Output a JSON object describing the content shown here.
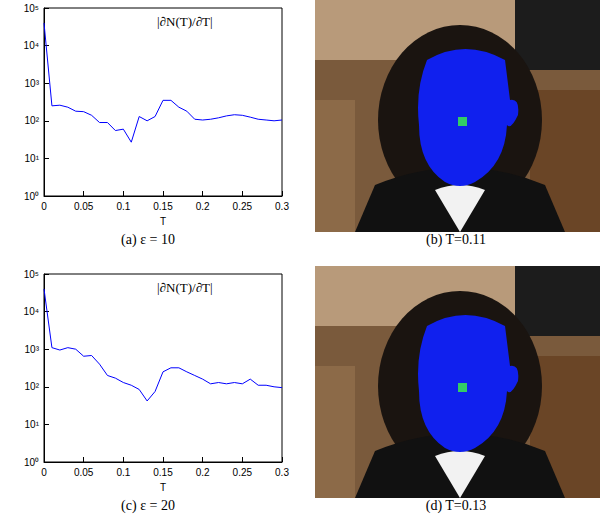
{
  "chart_data": [
    {
      "type": "line",
      "caption": "(a) ε = 10",
      "annotation": "|∂N(T)/∂T|",
      "x_label": "T",
      "log": "y",
      "color": "#0000ff",
      "grid": false,
      "x": [
        0,
        0.01,
        0.02,
        0.03,
        0.04,
        0.05,
        0.06,
        0.07,
        0.08,
        0.09,
        0.1,
        0.11,
        0.12,
        0.13,
        0.14,
        0.15,
        0.16,
        0.17,
        0.18,
        0.19,
        0.2,
        0.21,
        0.22,
        0.23,
        0.24,
        0.25,
        0.26,
        0.27,
        0.28,
        0.29,
        0.3
      ],
      "values": [
        40000,
        250,
        260,
        230,
        180,
        175,
        140,
        90,
        90,
        55,
        60,
        27,
        130,
        100,
        130,
        350,
        350,
        230,
        180,
        110,
        105,
        110,
        120,
        135,
        145,
        140,
        125,
        110,
        105,
        100,
        105
      ],
      "xlim": [
        0,
        0.3
      ],
      "xticks": [
        0,
        0.05,
        0.1,
        0.15,
        0.2,
        0.25,
        0.3
      ],
      "ylim": [
        1,
        100000
      ],
      "yticks": [
        {
          "value": 1,
          "label": "10⁰"
        },
        {
          "value": 10,
          "label": "10¹"
        },
        {
          "value": 100,
          "label": "10²"
        },
        {
          "value": 1000,
          "label": "10³"
        },
        {
          "value": 10000,
          "label": "10⁴"
        },
        {
          "value": 100000,
          "label": "10⁵"
        }
      ]
    },
    {
      "type": "line",
      "caption": "(c) ε = 20",
      "annotation": "|∂N(T)/∂T|",
      "x_label": "T",
      "log": "y",
      "color": "#0000ff",
      "grid": false,
      "x": [
        0,
        0.01,
        0.02,
        0.03,
        0.04,
        0.05,
        0.06,
        0.07,
        0.08,
        0.09,
        0.1,
        0.11,
        0.12,
        0.13,
        0.14,
        0.15,
        0.16,
        0.17,
        0.18,
        0.19,
        0.2,
        0.21,
        0.22,
        0.23,
        0.24,
        0.25,
        0.26,
        0.27,
        0.28,
        0.29,
        0.3
      ],
      "values": [
        40000,
        1100,
        950,
        1100,
        1000,
        650,
        680,
        400,
        200,
        170,
        130,
        110,
        85,
        42,
        75,
        250,
        320,
        320,
        250,
        200,
        160,
        120,
        130,
        120,
        130,
        120,
        160,
        110,
        110,
        100,
        95
      ],
      "xlim": [
        0,
        0.3
      ],
      "xticks": [
        0,
        0.05,
        0.1,
        0.15,
        0.2,
        0.25,
        0.3
      ],
      "ylim": [
        1,
        100000
      ],
      "yticks": [
        {
          "value": 1,
          "label": "10⁰"
        },
        {
          "value": 10,
          "label": "10¹"
        },
        {
          "value": 100,
          "label": "10²"
        },
        {
          "value": 1000,
          "label": "10³"
        },
        {
          "value": 10000,
          "label": "10⁴"
        },
        {
          "value": 100000,
          "label": "10⁵"
        }
      ]
    }
  ],
  "images": [
    {
      "caption": "(b) T=0.11"
    },
    {
      "caption": "(d) T=0.13"
    }
  ]
}
